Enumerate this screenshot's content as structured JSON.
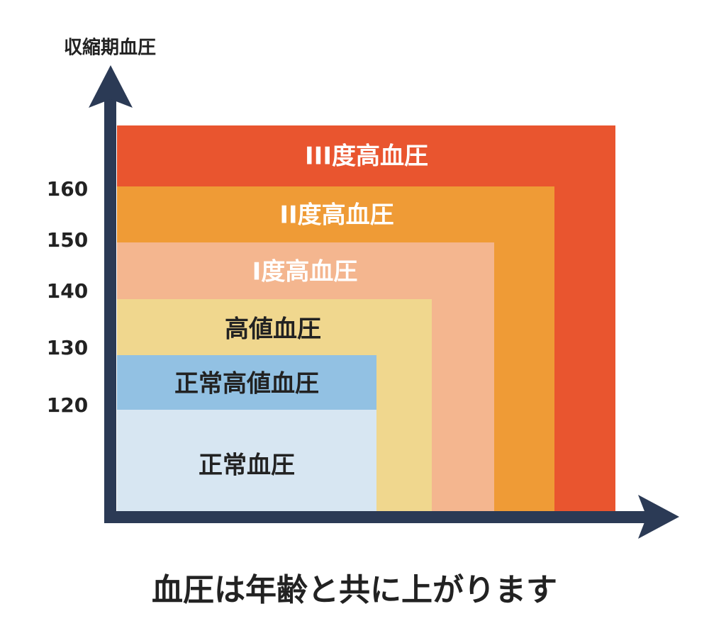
{
  "y_axis": {
    "label": "収縮期血圧",
    "ticks": [
      160,
      150,
      140,
      130,
      120
    ]
  },
  "zones": [
    {
      "label": "III度高血圧",
      "color": "#e9552f"
    },
    {
      "label": "II度高血圧",
      "color": "#ef9b36"
    },
    {
      "label": "I度高血圧",
      "color": "#f4b68f"
    },
    {
      "label": "高値血圧",
      "color": "#f0d78e"
    },
    {
      "label": "正常高値血圧",
      "color": "#92c1e3"
    },
    {
      "label": "正常血圧",
      "color": "#d7e6f2"
    }
  ],
  "caption": "血圧は年齢と共に上がります"
}
